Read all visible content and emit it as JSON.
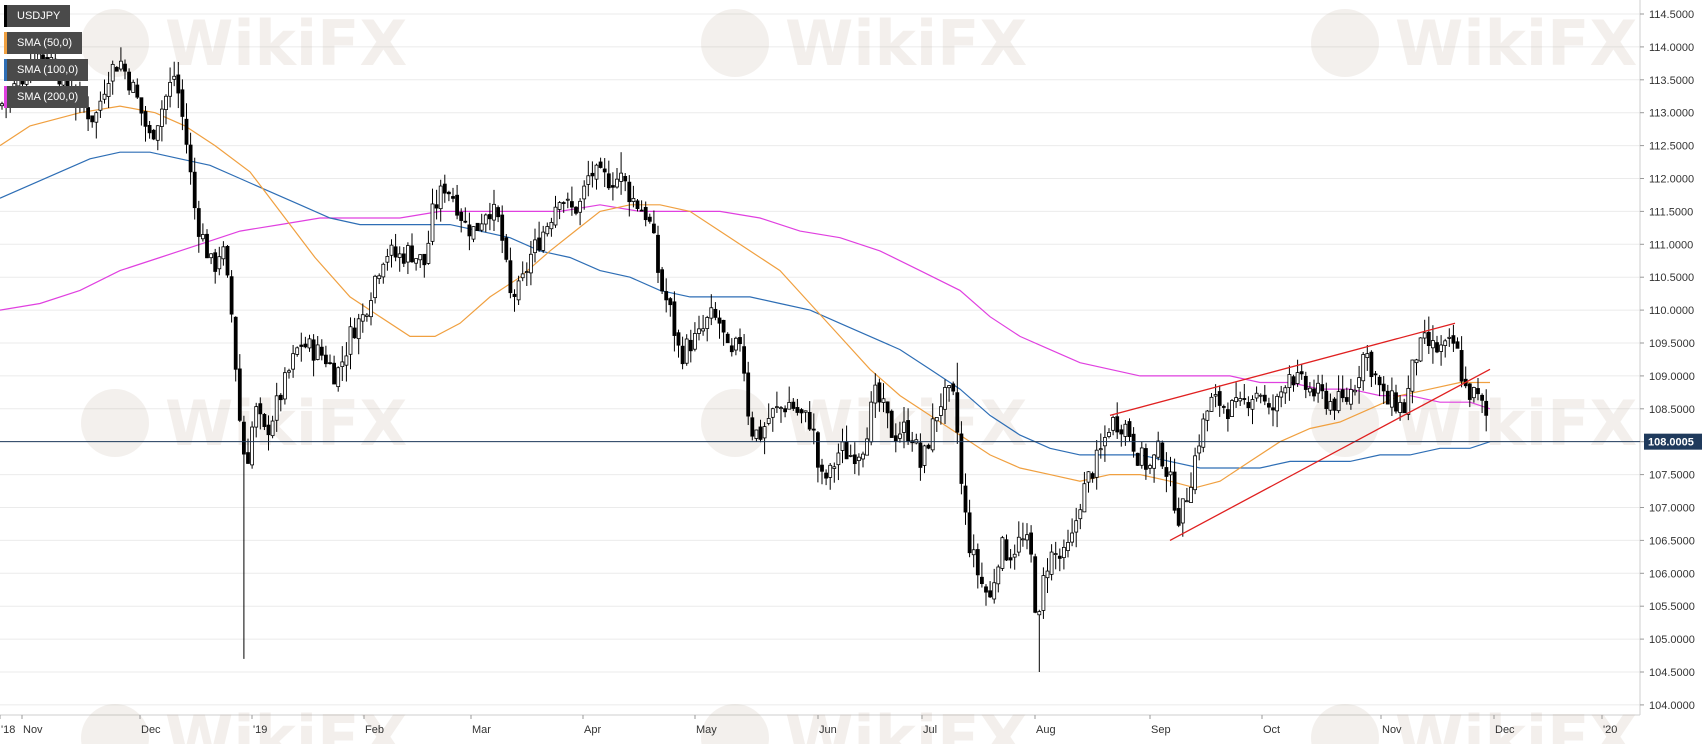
{
  "chart_data": {
    "type": "candlestick",
    "symbol": "USDJPY",
    "watermark": "WikiFX",
    "ylim": [
      104.0,
      114.5
    ],
    "y_ticks": [
      "114.5000",
      "114.0000",
      "113.5000",
      "113.0000",
      "112.5000",
      "112.0000",
      "111.5000",
      "111.0000",
      "110.5000",
      "110.0000",
      "109.5000",
      "109.0000",
      "108.5000",
      "108.0000",
      "107.5000",
      "107.0000",
      "106.5000",
      "106.0000",
      "105.5000",
      "105.0000",
      "104.5000",
      "104.0000"
    ],
    "x_ticks": [
      "'18",
      "Nov",
      "Dec",
      "'19",
      "Feb",
      "Mar",
      "Apr",
      "May",
      "Jun",
      "Jul",
      "Aug",
      "Sep",
      "Oct",
      "Nov",
      "Dec",
      "'20"
    ],
    "last_price_label": "108.0005",
    "last_price": 108.0005,
    "legend": [
      {
        "label": "USDJPY",
        "color": "#000000"
      },
      {
        "label": "SMA (50,0)",
        "color": "#f0a040"
      },
      {
        "label": "SMA (100,0)",
        "color": "#2e6eb5"
      },
      {
        "label": "SMA (200,0)",
        "color": "#e040e0"
      }
    ],
    "price_path": [
      [
        0,
        113.1
      ],
      [
        10,
        113.3
      ],
      [
        25,
        113.6
      ],
      [
        35,
        113.9
      ],
      [
        52,
        113.8
      ],
      [
        70,
        113.3
      ],
      [
        82,
        113.1
      ],
      [
        95,
        112.9
      ],
      [
        108,
        113.6
      ],
      [
        120,
        113.8
      ],
      [
        135,
        113.3
      ],
      [
        150,
        112.6
      ],
      [
        165,
        113.2
      ],
      [
        175,
        113.6
      ],
      [
        186,
        112.6
      ],
      [
        196,
        111.4
      ],
      [
        205,
        111.0
      ],
      [
        213,
        110.6
      ],
      [
        222,
        111.0
      ],
      [
        232,
        109.9
      ],
      [
        240,
        108.3
      ],
      [
        246,
        107.6
      ],
      [
        255,
        108.5
      ],
      [
        265,
        108.1
      ],
      [
        278,
        108.6
      ],
      [
        290,
        109.1
      ],
      [
        300,
        109.5
      ],
      [
        313,
        109.4
      ],
      [
        325,
        109.3
      ],
      [
        336,
        109.0
      ],
      [
        344,
        109.3
      ],
      [
        352,
        109.7
      ],
      [
        363,
        109.9
      ],
      [
        375,
        110.5
      ],
      [
        385,
        110.9
      ],
      [
        398,
        110.8
      ],
      [
        410,
        110.9
      ],
      [
        425,
        110.7
      ],
      [
        433,
        111.5
      ],
      [
        445,
        111.9
      ],
      [
        455,
        111.7
      ],
      [
        465,
        111.3
      ],
      [
        475,
        111.2
      ],
      [
        488,
        111.6
      ],
      [
        500,
        111.3
      ],
      [
        510,
        110.2
      ],
      [
        520,
        110.3
      ],
      [
        530,
        110.8
      ],
      [
        540,
        111.1
      ],
      [
        550,
        111.4
      ],
      [
        560,
        111.8
      ],
      [
        570,
        111.5
      ],
      [
        580,
        111.6
      ],
      [
        590,
        112.1
      ],
      [
        600,
        112.0
      ],
      [
        612,
        112.0
      ],
      [
        622,
        112.0
      ],
      [
        632,
        111.7
      ],
      [
        645,
        111.5
      ],
      [
        652,
        111.2
      ],
      [
        660,
        110.4
      ],
      [
        670,
        110.0
      ],
      [
        680,
        109.3
      ],
      [
        690,
        109.5
      ],
      [
        700,
        109.6
      ],
      [
        710,
        109.9
      ],
      [
        720,
        109.8
      ],
      [
        730,
        109.2
      ],
      [
        741,
        109.6
      ],
      [
        750,
        108.2
      ],
      [
        760,
        108.1
      ],
      [
        770,
        108.4
      ],
      [
        780,
        108.5
      ],
      [
        790,
        108.6
      ],
      [
        800,
        108.4
      ],
      [
        812,
        108.3
      ],
      [
        820,
        107.4
      ],
      [
        830,
        107.5
      ],
      [
        840,
        107.9
      ],
      [
        850,
        107.8
      ],
      [
        862,
        107.9
      ],
      [
        875,
        108.7
      ],
      [
        883,
        108.5
      ],
      [
        893,
        108.1
      ],
      [
        903,
        108.2
      ],
      [
        913,
        108.1
      ],
      [
        921,
        107.6
      ],
      [
        930,
        108.1
      ],
      [
        940,
        108.6
      ],
      [
        948,
        108.7
      ],
      [
        955,
        108.6
      ],
      [
        962,
        107.2
      ],
      [
        970,
        106.4
      ],
      [
        980,
        105.9
      ],
      [
        990,
        105.6
      ],
      [
        1000,
        106.4
      ],
      [
        1010,
        106.3
      ],
      [
        1020,
        106.5
      ],
      [
        1030,
        106.4
      ],
      [
        1038,
        105.1
      ],
      [
        1045,
        106.1
      ],
      [
        1053,
        106.3
      ],
      [
        1063,
        106.2
      ],
      [
        1072,
        106.5
      ],
      [
        1080,
        107.1
      ],
      [
        1090,
        107.5
      ],
      [
        1100,
        107.8
      ],
      [
        1110,
        108.3
      ],
      [
        1120,
        108.3
      ],
      [
        1128,
        108.2
      ],
      [
        1138,
        107.8
      ],
      [
        1150,
        107.6
      ],
      [
        1160,
        107.9
      ],
      [
        1170,
        107.4
      ],
      [
        1180,
        106.8
      ],
      [
        1190,
        107.4
      ],
      [
        1200,
        108.1
      ],
      [
        1210,
        108.6
      ],
      [
        1220,
        108.6
      ],
      [
        1230,
        108.5
      ],
      [
        1240,
        108.5
      ],
      [
        1250,
        108.7
      ],
      [
        1260,
        108.8
      ],
      [
        1268,
        108.4
      ],
      [
        1278,
        108.6
      ],
      [
        1288,
        109.1
      ],
      [
        1298,
        108.9
      ],
      [
        1308,
        108.8
      ],
      [
        1320,
        108.7
      ],
      [
        1330,
        108.6
      ],
      [
        1345,
        108.6
      ],
      [
        1355,
        108.9
      ],
      [
        1365,
        109.4
      ],
      [
        1375,
        109.0
      ],
      [
        1385,
        108.6
      ],
      [
        1395,
        108.6
      ],
      [
        1405,
        108.5
      ],
      [
        1415,
        109.3
      ],
      [
        1425,
        109.5
      ],
      [
        1435,
        109.4
      ],
      [
        1445,
        109.4
      ],
      [
        1455,
        109.5
      ],
      [
        1465,
        108.8
      ],
      [
        1475,
        108.7
      ],
      [
        1480,
        108.6
      ],
      [
        1486,
        108.4
      ],
      [
        1490,
        108.0
      ]
    ],
    "sma_50": [
      [
        0,
        112.5
      ],
      [
        30,
        112.8
      ],
      [
        80,
        113.0
      ],
      [
        120,
        113.1
      ],
      [
        155,
        113.0
      ],
      [
        185,
        112.8
      ],
      [
        215,
        112.5
      ],
      [
        250,
        112.1
      ],
      [
        280,
        111.5
      ],
      [
        315,
        110.8
      ],
      [
        350,
        110.2
      ],
      [
        380,
        109.9
      ],
      [
        410,
        109.6
      ],
      [
        435,
        109.6
      ],
      [
        460,
        109.8
      ],
      [
        490,
        110.2
      ],
      [
        520,
        110.5
      ],
      [
        550,
        110.9
      ],
      [
        575,
        111.2
      ],
      [
        600,
        111.5
      ],
      [
        630,
        111.6
      ],
      [
        660,
        111.6
      ],
      [
        690,
        111.5
      ],
      [
        720,
        111.2
      ],
      [
        750,
        110.9
      ],
      [
        780,
        110.6
      ],
      [
        810,
        110.1
      ],
      [
        840,
        109.6
      ],
      [
        870,
        109.1
      ],
      [
        900,
        108.7
      ],
      [
        930,
        108.4
      ],
      [
        960,
        108.1
      ],
      [
        990,
        107.8
      ],
      [
        1020,
        107.6
      ],
      [
        1050,
        107.5
      ],
      [
        1080,
        107.4
      ],
      [
        1110,
        107.5
      ],
      [
        1140,
        107.5
      ],
      [
        1170,
        107.4
      ],
      [
        1195,
        107.3
      ],
      [
        1220,
        107.4
      ],
      [
        1250,
        107.7
      ],
      [
        1280,
        108.0
      ],
      [
        1310,
        108.2
      ],
      [
        1340,
        108.3
      ],
      [
        1370,
        108.5
      ],
      [
        1400,
        108.7
      ],
      [
        1430,
        108.8
      ],
      [
        1460,
        108.9
      ],
      [
        1490,
        108.9
      ]
    ],
    "sma_100": [
      [
        0,
        111.7
      ],
      [
        30,
        111.9
      ],
      [
        60,
        112.1
      ],
      [
        90,
        112.3
      ],
      [
        120,
        112.4
      ],
      [
        150,
        112.4
      ],
      [
        180,
        112.3
      ],
      [
        210,
        112.2
      ],
      [
        240,
        112.0
      ],
      [
        270,
        111.8
      ],
      [
        300,
        111.6
      ],
      [
        330,
        111.4
      ],
      [
        360,
        111.3
      ],
      [
        390,
        111.3
      ],
      [
        420,
        111.3
      ],
      [
        450,
        111.3
      ],
      [
        480,
        111.2
      ],
      [
        510,
        111.1
      ],
      [
        540,
        110.9
      ],
      [
        570,
        110.8
      ],
      [
        600,
        110.6
      ],
      [
        630,
        110.5
      ],
      [
        660,
        110.3
      ],
      [
        690,
        110.2
      ],
      [
        720,
        110.2
      ],
      [
        750,
        110.2
      ],
      [
        780,
        110.1
      ],
      [
        810,
        110.0
      ],
      [
        840,
        109.8
      ],
      [
        870,
        109.6
      ],
      [
        900,
        109.4
      ],
      [
        930,
        109.1
      ],
      [
        960,
        108.8
      ],
      [
        990,
        108.4
      ],
      [
        1020,
        108.1
      ],
      [
        1050,
        107.9
      ],
      [
        1080,
        107.8
      ],
      [
        1110,
        107.8
      ],
      [
        1140,
        107.8
      ],
      [
        1170,
        107.7
      ],
      [
        1200,
        107.6
      ],
      [
        1230,
        107.6
      ],
      [
        1260,
        107.6
      ],
      [
        1290,
        107.7
      ],
      [
        1320,
        107.7
      ],
      [
        1350,
        107.7
      ],
      [
        1380,
        107.8
      ],
      [
        1410,
        107.8
      ],
      [
        1440,
        107.9
      ],
      [
        1470,
        107.9
      ],
      [
        1490,
        108.0
      ]
    ],
    "sma_200": [
      [
        0,
        110.0
      ],
      [
        40,
        110.1
      ],
      [
        80,
        110.3
      ],
      [
        120,
        110.6
      ],
      [
        160,
        110.8
      ],
      [
        200,
        111.0
      ],
      [
        240,
        111.2
      ],
      [
        280,
        111.3
      ],
      [
        320,
        111.4
      ],
      [
        360,
        111.4
      ],
      [
        400,
        111.4
      ],
      [
        440,
        111.5
      ],
      [
        480,
        111.5
      ],
      [
        520,
        111.5
      ],
      [
        560,
        111.5
      ],
      [
        600,
        111.6
      ],
      [
        640,
        111.5
      ],
      [
        680,
        111.5
      ],
      [
        720,
        111.5
      ],
      [
        760,
        111.4
      ],
      [
        800,
        111.2
      ],
      [
        840,
        111.1
      ],
      [
        880,
        110.9
      ],
      [
        920,
        110.6
      ],
      [
        960,
        110.3
      ],
      [
        990,
        109.9
      ],
      [
        1020,
        109.6
      ],
      [
        1050,
        109.4
      ],
      [
        1080,
        109.2
      ],
      [
        1110,
        109.1
      ],
      [
        1140,
        109.0
      ],
      [
        1170,
        109.0
      ],
      [
        1200,
        109.0
      ],
      [
        1230,
        109.0
      ],
      [
        1260,
        108.9
      ],
      [
        1290,
        108.9
      ],
      [
        1320,
        108.8
      ],
      [
        1350,
        108.8
      ],
      [
        1380,
        108.7
      ],
      [
        1410,
        108.7
      ],
      [
        1440,
        108.6
      ],
      [
        1470,
        108.6
      ],
      [
        1490,
        108.5
      ]
    ],
    "trendlines": [
      {
        "color": "#e02020",
        "from": [
          1110,
          108.4
        ],
        "to": [
          1455,
          109.8
        ]
      },
      {
        "color": "#e02020",
        "from": [
          1170,
          106.5
        ],
        "to": [
          1490,
          109.1
        ]
      }
    ]
  }
}
